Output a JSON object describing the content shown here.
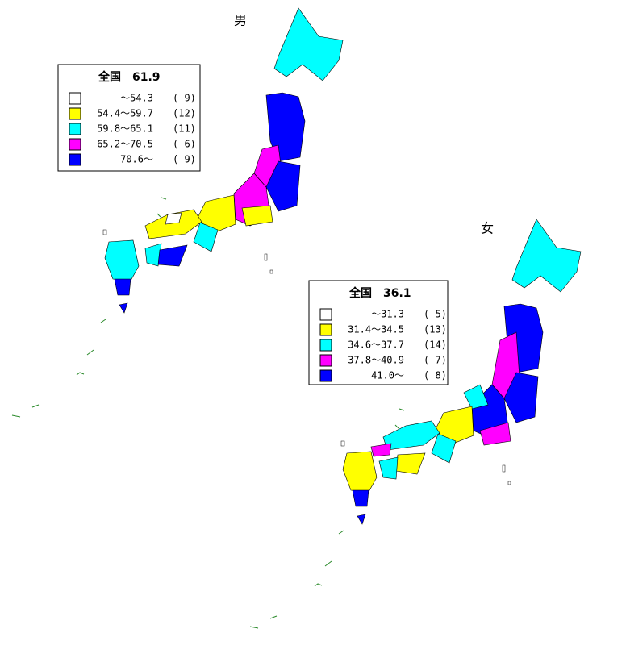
{
  "maps": [
    {
      "title": "男",
      "legend": {
        "header": "全国　61.9",
        "items": [
          {
            "range": "～54.3",
            "count": "( 9)",
            "color": "#ffffff"
          },
          {
            "range": "54.4～59.7",
            "count": "(12)",
            "color": "#ffff00"
          },
          {
            "range": "59.8～65.1",
            "count": "(11)",
            "color": "#00ffff"
          },
          {
            "range": "65.2～70.5",
            "count": "( 6)",
            "color": "#ff00ff"
          },
          {
            "range": "70.6～",
            "count": "( 9)",
            "color": "#0000ff"
          }
        ]
      }
    },
    {
      "title": "女",
      "legend": {
        "header": "全国　36.1",
        "items": [
          {
            "range": "～31.3",
            "count": "( 5)",
            "color": "#ffffff"
          },
          {
            "range": "31.4～34.5",
            "count": "(13)",
            "color": "#ffff00"
          },
          {
            "range": "34.6～37.7",
            "count": "(14)",
            "color": "#00ffff"
          },
          {
            "range": "37.8～40.9",
            "count": "( 7)",
            "color": "#ff00ff"
          },
          {
            "range": "41.0～",
            "count": "( 8)",
            "color": "#0000ff"
          }
        ]
      }
    }
  ]
}
